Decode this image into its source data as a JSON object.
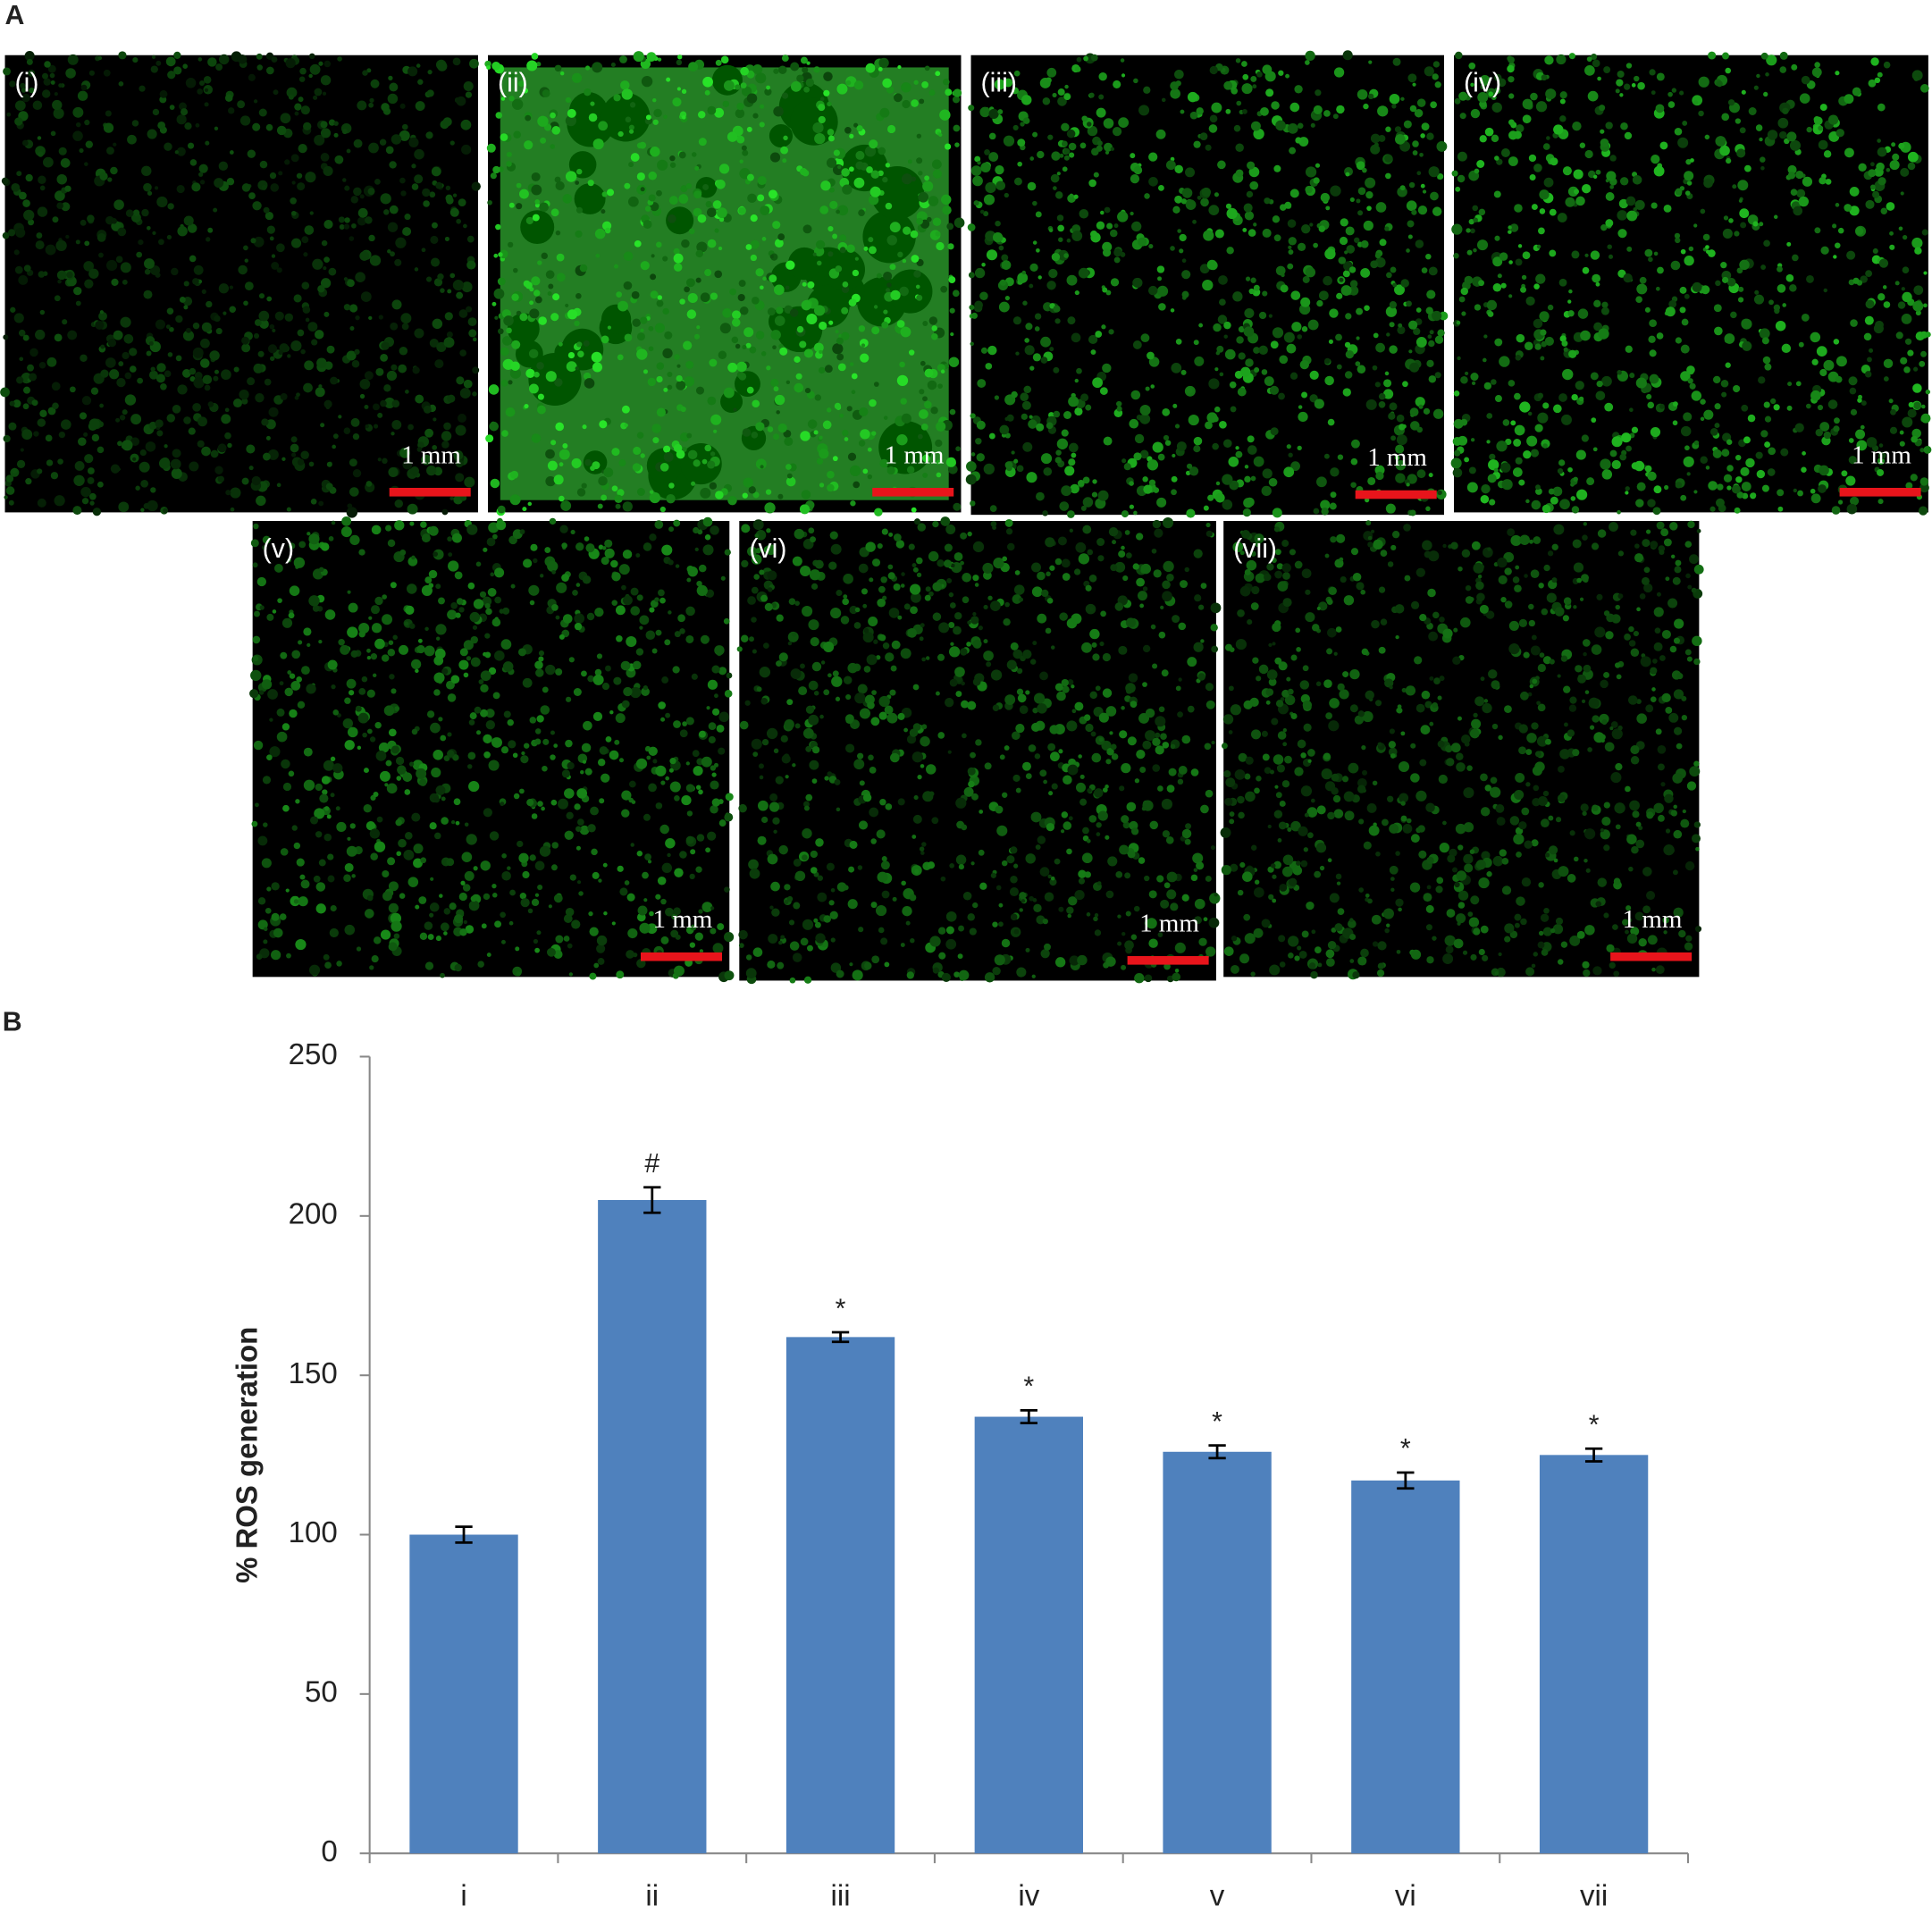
{
  "panel_a": {
    "label": "A",
    "images": [
      {
        "label": "(i)",
        "scale": "1 mm"
      },
      {
        "label": "(ii)",
        "scale": "1 mm"
      },
      {
        "label": "(iii)",
        "scale": "1 mm"
      },
      {
        "label": "(iv)",
        "scale": "1 mm"
      },
      {
        "label": "(v)",
        "scale": "1 mm"
      },
      {
        "label": "(vi)",
        "scale": "1 mm"
      },
      {
        "label": "(vii)",
        "scale": "1 mm"
      }
    ]
  },
  "chart_data": {
    "type": "bar",
    "panel_label": "B",
    "y_label": "% ROS generation",
    "categories": [
      "i",
      "ii",
      "iii",
      "iv",
      "v",
      "vi",
      "vii"
    ],
    "values": [
      100,
      205,
      162,
      137,
      126,
      117,
      125
    ],
    "errors": [
      2.5,
      4,
      1.5,
      2,
      2,
      2.5,
      2
    ],
    "annotations": [
      null,
      "#",
      "*",
      "*",
      "*",
      "*",
      "*"
    ],
    "color": "#4f81bd",
    "ylim": [
      0,
      250
    ],
    "yticks": [
      0,
      50,
      100,
      150,
      200,
      250
    ]
  }
}
